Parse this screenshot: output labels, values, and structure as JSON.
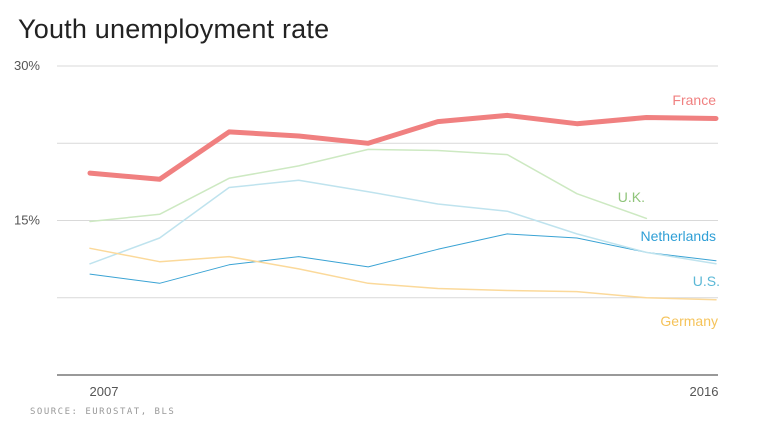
{
  "title": "Youth unemployment rate",
  "source": "SOURCE: EUROSTAT, BLS",
  "chart_data": {
    "type": "line",
    "x": [
      2007,
      2008,
      2009,
      2010,
      2011,
      2012,
      2013,
      2014,
      2015,
      2016
    ],
    "xticks": [
      "2007",
      "2016"
    ],
    "yticks": [
      "30%",
      "15%"
    ],
    "ylim": [
      0,
      30
    ],
    "grid": true,
    "series": [
      {
        "name": "France",
        "color": "#f08080",
        "width": 5,
        "values": [
          19.6,
          19.0,
          23.6,
          23.2,
          22.5,
          24.6,
          25.2,
          24.4,
          25.0,
          24.9
        ]
      },
      {
        "name": "U.K.",
        "color": "#cde9c2",
        "width": 1.5,
        "values": [
          14.9,
          15.6,
          19.1,
          20.3,
          21.9,
          21.8,
          21.4,
          17.6,
          15.2,
          null
        ]
      },
      {
        "name": "Netherlands",
        "color": "#3aa3d4",
        "width": 1,
        "values": [
          9.8,
          8.9,
          10.7,
          11.5,
          10.5,
          12.2,
          13.7,
          13.3,
          11.9,
          11.1
        ]
      },
      {
        "name": "U.S.",
        "color": "#bfe3ee",
        "width": 1.5,
        "values": [
          10.8,
          13.3,
          18.2,
          18.9,
          17.8,
          16.6,
          15.9,
          13.7,
          11.9,
          10.8
        ]
      },
      {
        "name": "Germany",
        "color": "#fbd99a",
        "width": 1.5,
        "values": [
          12.3,
          11.0,
          11.5,
          10.3,
          8.9,
          8.4,
          8.2,
          8.1,
          7.5,
          7.3
        ]
      }
    ]
  }
}
